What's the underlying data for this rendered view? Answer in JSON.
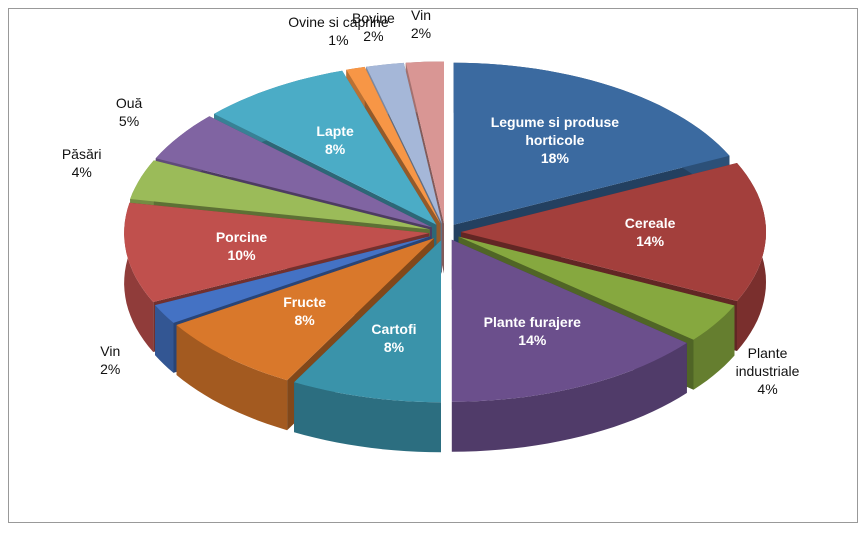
{
  "chart_data": {
    "type": "pie3d",
    "categories": [
      "Legume si produse horticole",
      "Cereale",
      "Plante industriale",
      "Plante furajere",
      "Cartofi",
      "Fructe",
      "Vin",
      "Porcine",
      "Păsări",
      "Ouă",
      "Lapte",
      "Ovine si caprine",
      "Bovine",
      "Vin"
    ],
    "values": [
      18,
      14,
      4,
      14,
      8,
      8,
      2,
      10,
      4,
      5,
      8,
      1,
      2,
      2
    ],
    "value_labels": [
      "18%",
      "14%",
      "4%",
      "14%",
      "8%",
      "8%",
      "2%",
      "10%",
      "4%",
      "5%",
      "8%",
      "1%",
      "2%",
      "2%"
    ],
    "colors": [
      "#3b6aa0",
      "#a33f3c",
      "#86a83f",
      "#6b4f8c",
      "#3a93aa",
      "#d9782b",
      "#4472c4",
      "#c0504d",
      "#9bbb59",
      "#8064a2",
      "#4bacc6",
      "#f79646",
      "#a5b7d8",
      "#d99694"
    ]
  }
}
